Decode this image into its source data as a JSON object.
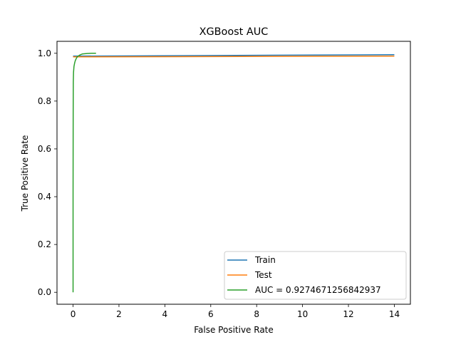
{
  "chart_data": {
    "type": "line",
    "title": "XGBoost AUC",
    "xlabel": "False Positive Rate",
    "ylabel": "True Positive Rate",
    "xlim": [
      -0.7,
      14.7
    ],
    "ylim": [
      -0.05,
      1.05
    ],
    "xticks": [
      0,
      2,
      4,
      6,
      8,
      10,
      12,
      14
    ],
    "yticks": [
      0.0,
      0.2,
      0.4,
      0.6,
      0.8,
      1.0
    ],
    "xtick_labels": [
      "0",
      "2",
      "4",
      "6",
      "8",
      "10",
      "12",
      "14"
    ],
    "ytick_labels": [
      "0.0",
      "0.2",
      "0.4",
      "0.6",
      "0.8",
      "1.0"
    ],
    "grid": false,
    "legend_position": "lower-right",
    "series": [
      {
        "name": "Train",
        "color": "#1f77b4",
        "x": [
          0,
          14
        ],
        "y": [
          0.988,
          0.994
        ]
      },
      {
        "name": "Test",
        "color": "#ff7f0e",
        "x": [
          0,
          14
        ],
        "y": [
          0.985,
          0.988
        ]
      },
      {
        "name": "AUC = 0.9274671256842937",
        "color": "#2ca02c",
        "x": [
          0,
          0.0,
          0.005,
          0.01,
          0.02,
          0.04,
          0.07,
          0.1,
          0.15,
          0.2,
          0.3,
          0.4,
          0.6,
          0.8,
          1.0
        ],
        "y": [
          0,
          0.4,
          0.75,
          0.88,
          0.92,
          0.945,
          0.96,
          0.97,
          0.98,
          0.987,
          0.993,
          0.997,
          0.999,
          1.0,
          1.0
        ]
      }
    ]
  }
}
